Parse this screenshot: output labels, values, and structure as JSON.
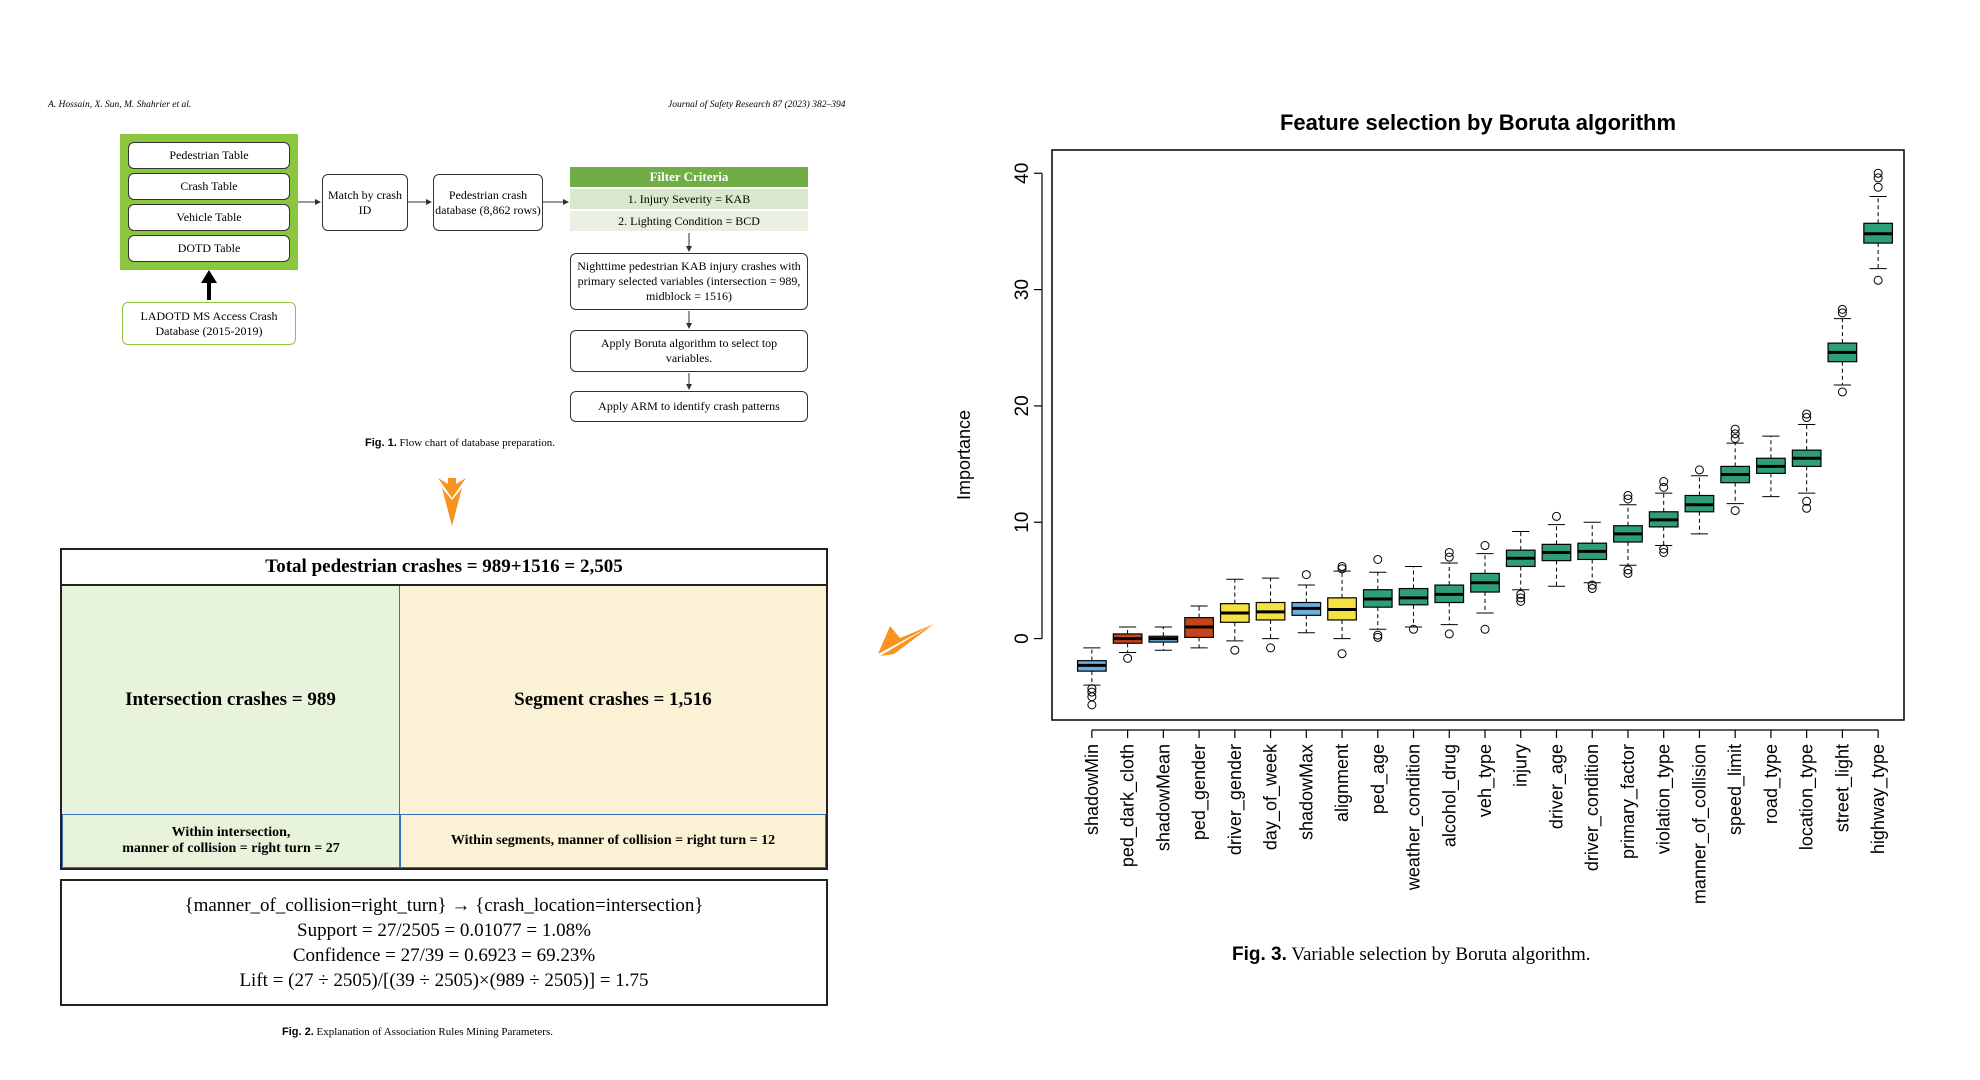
{
  "header": {
    "authors": "A. Hossain, X. Sun, M. Shahrier et al.",
    "journal": "Journal of Safety Research 87 (2023) 382–394"
  },
  "fig1": {
    "tables": [
      "Pedestrian Table",
      "Crash Table",
      "Vehicle Table",
      "DOTD Table"
    ],
    "source": "LADOTD MS Access Crash Database (2015-2019)",
    "match": "Match by crash ID",
    "db": "Pedestrian crash database (8,862 rows)",
    "filter_title": "Filter Criteria",
    "filter_1": "1. Injury Severity = KAB",
    "filter_2": "2. Lighting Condition = BCD",
    "step_nighttime": "Nighttime pedestrian KAB injury crashes with primary selected variables (intersection = 989, midblock = 1516)",
    "step_boruta": "Apply Boruta algorithm to select top variables.",
    "step_arm": "Apply ARM to identify crash patterns",
    "caption_label": "Fig. 1.",
    "caption_text": "Flow chart of database preparation."
  },
  "fig2": {
    "total": "Total pedestrian crashes = 989+1516 = 2,505",
    "intersection": "Intersection crashes = 989",
    "segment": "Segment crashes = 1,516",
    "within_int_1": "Within intersection,",
    "within_int_2": "manner of collision = right turn = 27",
    "within_seg": "Within segments, manner of collision = right turn = 12",
    "rule": "{manner_of_collision=right_turn} → {crash_location=intersection}",
    "support": "Support = 27/2505 = 0.01077 = 1.08%",
    "confidence": "Confidence = 27/39 = 0.6923 = 69.23%",
    "lift": "Lift = (27 ÷ 2505)/[(39 ÷ 2505)×(989 ÷ 2505)] = 1.75",
    "caption_label": "Fig. 2.",
    "caption_text": "Explanation of Association Rules Mining Parameters."
  },
  "fig3": {
    "caption_label": "Fig. 3.",
    "caption_text": "Variable selection by Boruta algorithm."
  },
  "colors": {
    "green_fill": "#e8f3dc",
    "cream_fill": "#fbf1d5",
    "accent_green": "#70ad47",
    "arrow_orange": "#f7931e",
    "box_green": "#2e9e78",
    "box_yellow": "#f5e13f",
    "box_red": "#c9431a",
    "box_blue": "#6aaee0"
  },
  "chart_data": {
    "type": "boxplot",
    "title": "Feature selection by Boruta algorithm",
    "xlabel": "",
    "ylabel": "Importance",
    "ylim": [
      -7,
      42
    ],
    "yticks": [
      0,
      10,
      20,
      30,
      40
    ],
    "categories": [
      "shadowMin",
      "ped_dark_cloth",
      "shadowMean",
      "ped_gender",
      "driver_gender",
      "day_of_week",
      "shadowMax",
      "alignment",
      "ped_age",
      "weather_condition",
      "alcohol_drug",
      "veh_type",
      "injury",
      "driver_age",
      "driver_condition",
      "primary_factor",
      "violation_type",
      "manner_of_collision",
      "speed_limit",
      "road_type",
      "location_type",
      "street_light",
      "highway_type"
    ],
    "color_class": [
      "blue",
      "red",
      "blue",
      "red",
      "yellow",
      "yellow",
      "blue",
      "yellow",
      "green",
      "green",
      "green",
      "green",
      "green",
      "green",
      "green",
      "green",
      "green",
      "green",
      "green",
      "green",
      "green",
      "green",
      "green"
    ],
    "boxes": [
      {
        "q1": -2.8,
        "median": -2.3,
        "q3": -1.9,
        "wlo": -4.0,
        "whi": -0.8,
        "out": [
          -4.3,
          -4.6,
          -5.0,
          -5.7
        ]
      },
      {
        "q1": -0.4,
        "median": 0.0,
        "q3": 0.4,
        "wlo": -1.2,
        "whi": 1.0,
        "out": [
          -1.7
        ]
      },
      {
        "q1": -0.3,
        "median": 0.0,
        "q3": 0.2,
        "wlo": -1.0,
        "whi": 1.0,
        "out": []
      },
      {
        "q1": 0.1,
        "median": 1.0,
        "q3": 1.8,
        "wlo": -0.8,
        "whi": 2.8,
        "out": []
      },
      {
        "q1": 1.4,
        "median": 2.2,
        "q3": 3.0,
        "wlo": -0.2,
        "whi": 5.1,
        "out": [
          -1.0
        ]
      },
      {
        "q1": 1.6,
        "median": 2.3,
        "q3": 3.1,
        "wlo": 0.0,
        "whi": 5.2,
        "out": [
          -0.8
        ]
      },
      {
        "q1": 2.0,
        "median": 2.6,
        "q3": 3.1,
        "wlo": 0.5,
        "whi": 4.6,
        "out": [
          5.5
        ]
      },
      {
        "q1": 1.6,
        "median": 2.5,
        "q3": 3.5,
        "wlo": 0.0,
        "whi": 5.8,
        "out": [
          -1.3,
          6.0,
          6.2
        ]
      },
      {
        "q1": 2.7,
        "median": 3.4,
        "q3": 4.2,
        "wlo": 0.8,
        "whi": 5.7,
        "out": [
          0.1,
          0.3,
          6.8
        ]
      },
      {
        "q1": 2.9,
        "median": 3.5,
        "q3": 4.3,
        "wlo": 1.0,
        "whi": 6.2,
        "out": [
          0.8
        ]
      },
      {
        "q1": 3.1,
        "median": 3.8,
        "q3": 4.6,
        "wlo": 1.2,
        "whi": 6.5,
        "out": [
          0.4,
          7.0,
          7.4
        ]
      },
      {
        "q1": 4.0,
        "median": 4.8,
        "q3": 5.6,
        "wlo": 2.2,
        "whi": 7.3,
        "out": [
          0.8,
          8.0
        ]
      },
      {
        "q1": 6.2,
        "median": 6.9,
        "q3": 7.6,
        "wlo": 4.2,
        "whi": 9.2,
        "out": [
          3.2,
          3.5,
          3.8
        ]
      },
      {
        "q1": 6.7,
        "median": 7.4,
        "q3": 8.1,
        "wlo": 4.5,
        "whi": 9.8,
        "out": [
          10.5
        ]
      },
      {
        "q1": 6.8,
        "median": 7.5,
        "q3": 8.2,
        "wlo": 4.8,
        "whi": 10.0,
        "out": [
          4.3,
          4.6
        ]
      },
      {
        "q1": 8.3,
        "median": 9.0,
        "q3": 9.7,
        "wlo": 6.3,
        "whi": 11.5,
        "out": [
          5.6,
          5.9,
          12.0,
          12.3
        ]
      },
      {
        "q1": 9.6,
        "median": 10.2,
        "q3": 10.9,
        "wlo": 8.0,
        "whi": 12.5,
        "out": [
          7.4,
          7.7,
          13.0,
          13.5
        ]
      },
      {
        "q1": 10.9,
        "median": 11.5,
        "q3": 12.3,
        "wlo": 9.0,
        "whi": 14.0,
        "out": [
          14.5
        ]
      },
      {
        "q1": 13.4,
        "median": 14.1,
        "q3": 14.8,
        "wlo": 11.6,
        "whi": 16.8,
        "out": [
          11.0,
          17.2,
          17.6,
          18.0
        ]
      },
      {
        "q1": 14.2,
        "median": 14.8,
        "q3": 15.5,
        "wlo": 12.2,
        "whi": 17.4,
        "out": []
      },
      {
        "q1": 14.8,
        "median": 15.5,
        "q3": 16.2,
        "wlo": 12.5,
        "whi": 18.4,
        "out": [
          11.2,
          11.8,
          19.0,
          19.3
        ]
      },
      {
        "q1": 23.8,
        "median": 24.6,
        "q3": 25.4,
        "wlo": 21.8,
        "whi": 27.5,
        "out": [
          21.2,
          28.0,
          28.3
        ]
      },
      {
        "q1": 34.0,
        "median": 34.8,
        "q3": 35.7,
        "wlo": 31.8,
        "whi": 38.0,
        "out": [
          30.8,
          38.8,
          39.6,
          40.0
        ]
      }
    ]
  }
}
